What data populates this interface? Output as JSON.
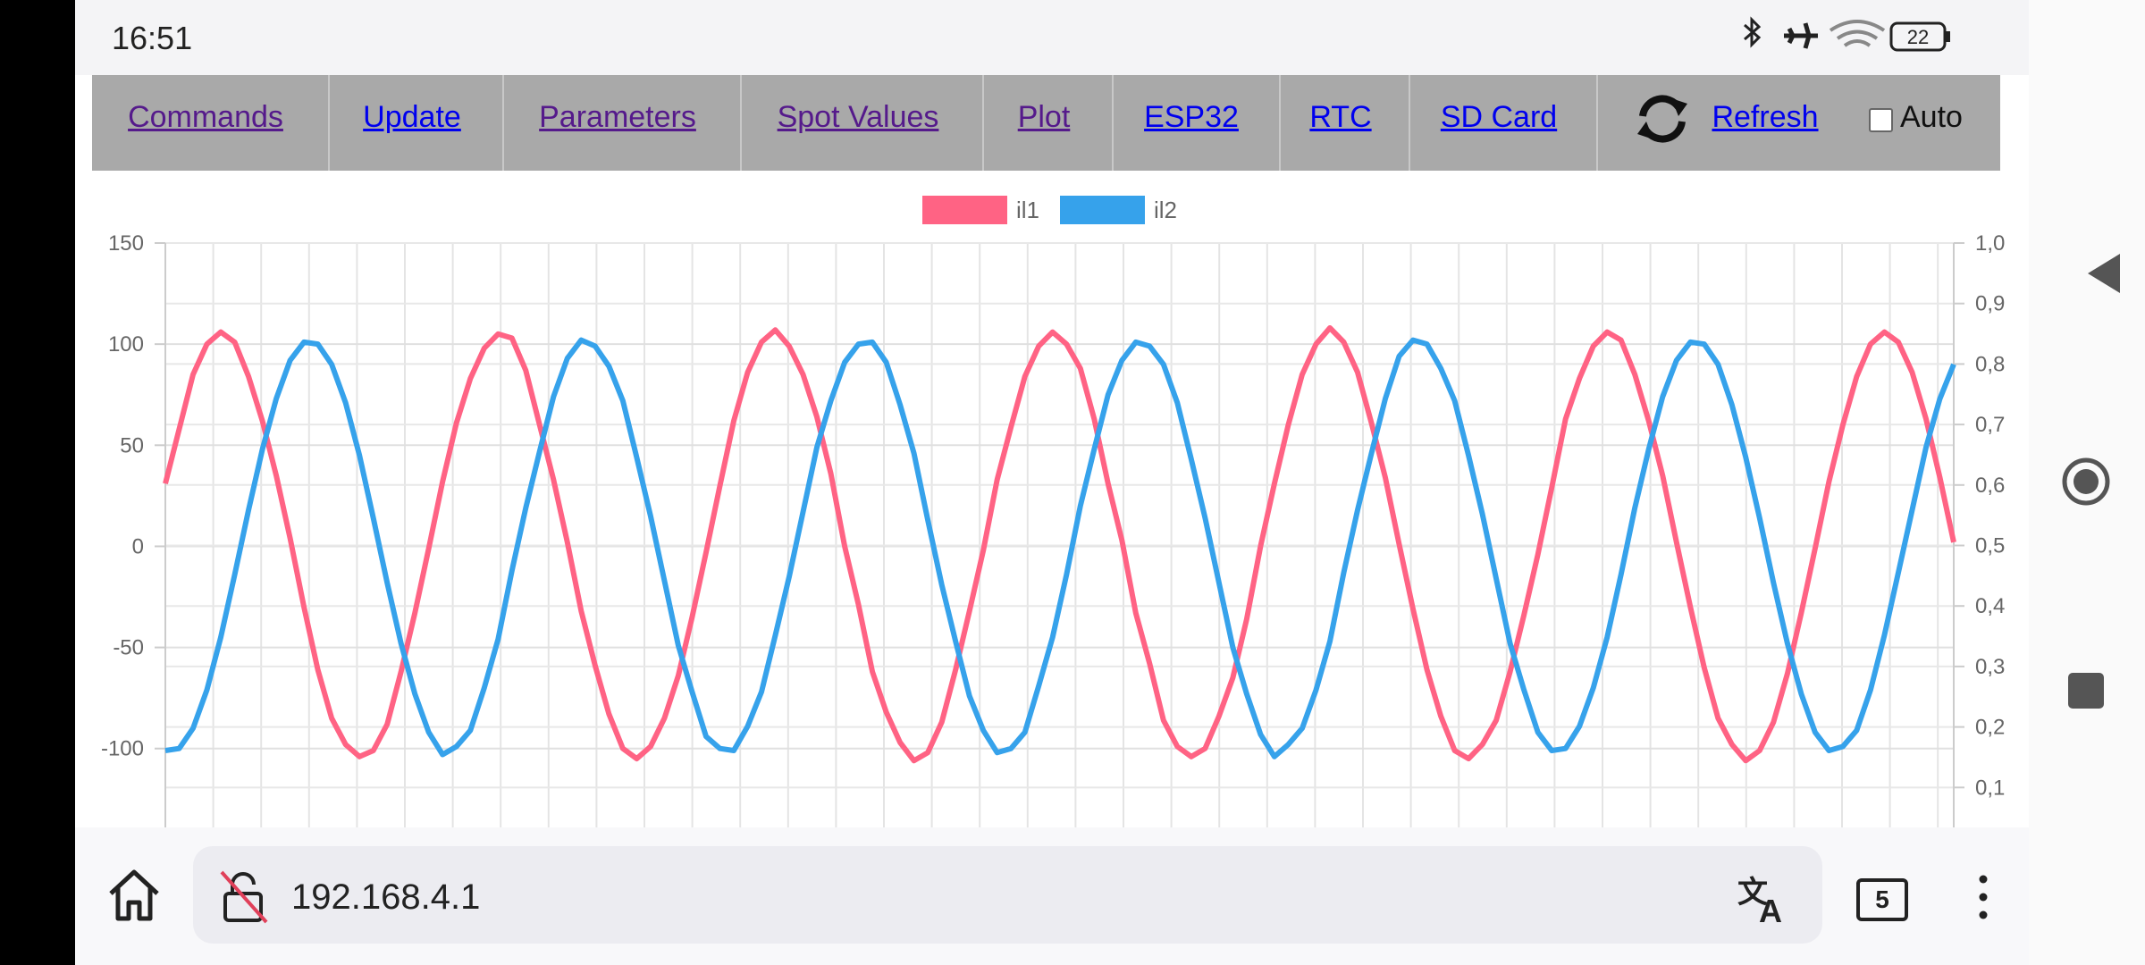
{
  "status_bar": {
    "time": "16:51",
    "battery": "22"
  },
  "nav": {
    "links": [
      "Commands",
      "Update",
      "Parameters",
      "Spot Values",
      "Plot",
      "ESP32",
      "RTC",
      "SD Card"
    ],
    "refresh": "Refresh",
    "auto": "Auto"
  },
  "chart_data": {
    "type": "line",
    "series": [
      {
        "name": "il1",
        "color": "#ff6384",
        "values": [
          31,
          58,
          85,
          100,
          106,
          101,
          84,
          62,
          35,
          4,
          -30,
          -61,
          -85,
          -98,
          -104,
          -101,
          -88,
          -62,
          -33,
          -1,
          32,
          61,
          83,
          98,
          105,
          103,
          87,
          60,
          33,
          2,
          -32,
          -59,
          -83,
          -100,
          -105,
          -99,
          -85,
          -64,
          -35,
          -3,
          30,
          62,
          86,
          101,
          107,
          99,
          85,
          64,
          36,
          0,
          -29,
          -62,
          -82,
          -97,
          -106,
          -102,
          -87,
          -61,
          -32,
          -2,
          33,
          59,
          84,
          99,
          106,
          100,
          88,
          63,
          31,
          3,
          -33,
          -58,
          -86,
          -99,
          -104,
          -100,
          -84,
          -65,
          -36,
          0,
          31,
          60,
          85,
          100,
          108,
          101,
          86,
          61,
          34,
          1,
          -31,
          -61,
          -84,
          -101,
          -105,
          -98,
          -86,
          -62,
          -34,
          -4,
          29,
          63,
          83,
          99,
          106,
          102,
          85,
          62,
          35,
          2,
          -30,
          -60,
          -85,
          -98,
          -106,
          -101,
          -87,
          -63,
          -33,
          -1,
          32,
          60,
          84,
          100,
          106,
          101,
          86,
          63,
          34,
          2
        ]
      },
      {
        "name": "il2",
        "color": "#36a2eb",
        "values": [
          -101,
          -100,
          -90,
          -71,
          -45,
          -14,
          18,
          48,
          73,
          92,
          101,
          100,
          90,
          71,
          45,
          14,
          -18,
          -48,
          -73,
          -92,
          -103,
          -99,
          -91,
          -70,
          -46,
          -12,
          19,
          47,
          74,
          93,
          102,
          99,
          89,
          72,
          44,
          15,
          -17,
          -49,
          -72,
          -94,
          -100,
          -101,
          -89,
          -72,
          -44,
          -15,
          17,
          49,
          72,
          91,
          100,
          101,
          91,
          70,
          46,
          13,
          -19,
          -47,
          -74,
          -91,
          -102,
          -100,
          -92,
          -69,
          -45,
          -14,
          20,
          48,
          75,
          92,
          101,
          99,
          90,
          71,
          43,
          14,
          -18,
          -50,
          -73,
          -93,
          -104,
          -98,
          -90,
          -71,
          -47,
          -13,
          18,
          46,
          73,
          94,
          102,
          100,
          88,
          72,
          45,
          16,
          -16,
          -48,
          -71,
          -92,
          -101,
          -100,
          -89,
          -70,
          -45,
          -14,
          19,
          48,
          74,
          92,
          101,
          100,
          90,
          70,
          44,
          14,
          -18,
          -48,
          -73,
          -92,
          -101,
          -99,
          -91,
          -71,
          -44,
          -13,
          18,
          49,
          73,
          90
        ]
      }
    ],
    "ylim": [
      -139,
      150
    ],
    "yticks": [
      -100,
      -50,
      0,
      50,
      100,
      150
    ],
    "y2lim": [
      0.034,
      1.0
    ],
    "y2ticks": [
      {
        "value": 0.1,
        "label": "0,1"
      },
      {
        "value": 0.2,
        "label": "0,2"
      },
      {
        "value": 0.3,
        "label": "0,3"
      },
      {
        "value": 0.4,
        "label": "0,4"
      },
      {
        "value": 0.5,
        "label": "0,5"
      },
      {
        "value": 0.6,
        "label": "0,6"
      },
      {
        "value": 0.7,
        "label": "0,7"
      },
      {
        "value": 0.8,
        "label": "0,8"
      },
      {
        "value": 0.9,
        "label": "0,9"
      },
      {
        "value": 1.0,
        "label": "1,0"
      }
    ],
    "grid": true,
    "legend": "top"
  },
  "browser": {
    "url": "192.168.4.1",
    "tabs": "5"
  }
}
